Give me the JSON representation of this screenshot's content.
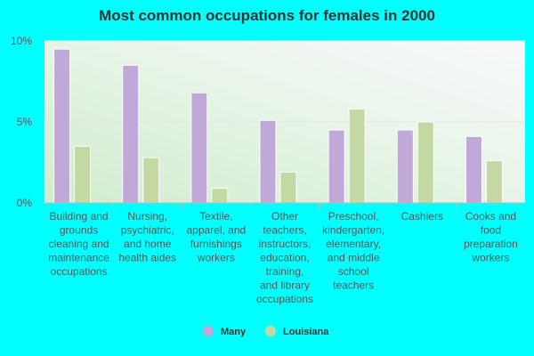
{
  "chart_data": {
    "type": "bar",
    "title": "Most common occupations for females in 2000",
    "xlabel": "",
    "ylabel": "",
    "ylim": [
      0,
      10
    ],
    "yticks": [
      "0%",
      "5%",
      "10%"
    ],
    "categories": [
      "Building and grounds cleaning and maintenance occupations",
      "Nursing, psychiatric, and home health aides",
      "Textile, apparel, and furnishings workers",
      "Other teachers, instructors, education, training, and library occupations",
      "Preschool, kindergarten, elementary, and middle school teachers",
      "Cashiers",
      "Cooks and food preparation workers"
    ],
    "series": [
      {
        "name": "Many",
        "color": "#c0a8d8",
        "values": [
          9.5,
          8.5,
          6.8,
          5.1,
          4.5,
          4.5,
          4.1
        ]
      },
      {
        "name": "Louisiana",
        "color": "#c4d8a4",
        "values": [
          3.5,
          2.8,
          0.9,
          1.9,
          5.8,
          5.0,
          2.6
        ]
      }
    ],
    "legend_position": "bottom",
    "grid": true
  }
}
